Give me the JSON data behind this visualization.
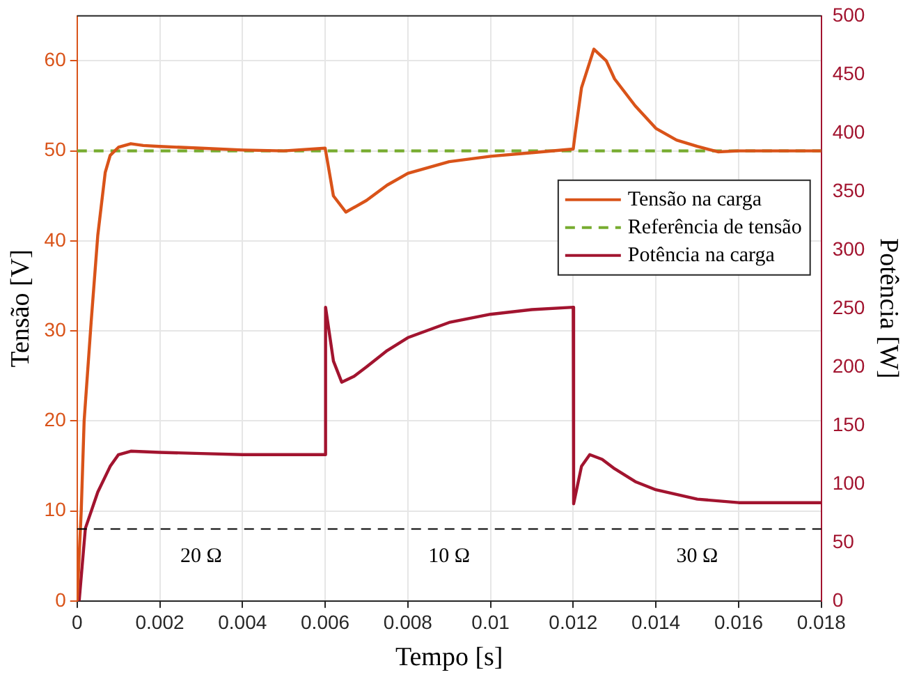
{
  "chart_data": {
    "type": "line",
    "xlabel": "Tempo [s]",
    "ylabel": "Tensão [V]",
    "y2label": "Potência [W]",
    "xlim": [
      0,
      0.018
    ],
    "xticks": [
      0,
      0.002,
      0.004,
      0.006,
      0.008,
      0.01,
      0.012,
      0.014,
      0.016,
      0.018
    ],
    "ylim": [
      0,
      65
    ],
    "yticks": [
      0,
      10,
      20,
      30,
      40,
      50,
      60
    ],
    "y2lim": [
      0,
      500
    ],
    "y2ticks": [
      0,
      50,
      100,
      150,
      200,
      250,
      300,
      350,
      400,
      450,
      500
    ],
    "grid": true,
    "legend": "top right",
    "marker": "none",
    "series": [
      {
        "name": "Tensão na carga",
        "color": "#d95319",
        "axis": "y",
        "x": [
          0,
          0.0001,
          0.00017,
          0.00034,
          0.0005,
          0.00068,
          0.0008,
          0.001,
          0.0013,
          0.0016,
          0.002,
          0.003,
          0.004,
          0.005,
          0.006,
          0.00605,
          0.0062,
          0.0065,
          0.007,
          0.0075,
          0.008,
          0.009,
          0.01,
          0.011,
          0.012,
          0.01205,
          0.0122,
          0.0125,
          0.0128,
          0.013,
          0.0135,
          0.014,
          0.0145,
          0.015,
          0.0155,
          0.016,
          0.017,
          0.018
        ],
        "values": [
          0,
          10,
          20,
          31,
          40.6,
          47.6,
          49.5,
          50.4,
          50.8,
          50.6,
          50.5,
          50.3,
          50.1,
          50,
          50.3,
          49,
          45,
          43.2,
          44.5,
          46.2,
          47.5,
          48.8,
          49.4,
          49.8,
          50.2,
          52,
          57,
          61.3,
          60,
          58,
          55,
          52.5,
          51.2,
          50.5,
          49.9,
          50,
          50,
          50
        ]
      },
      {
        "name": "Referência de tensão",
        "color": "#77ac30",
        "axis": "y",
        "line_style": "dashed",
        "x": [
          0,
          0.018
        ],
        "values": [
          50,
          50
        ]
      },
      {
        "name": "Potência na carga",
        "color": "#a2142f",
        "axis": "y2",
        "x": [
          0,
          5e-05,
          0.0002,
          0.0005,
          0.0008,
          0.001,
          0.0013,
          0.002,
          0.003,
          0.004,
          0.005,
          0.006,
          0.00601,
          0.0062,
          0.0064,
          0.0067,
          0.007,
          0.0075,
          0.008,
          0.009,
          0.01,
          0.011,
          0.012,
          0.01201,
          0.0122,
          0.0124,
          0.0127,
          0.013,
          0.0135,
          0.014,
          0.015,
          0.016,
          0.017,
          0.018
        ],
        "values": [
          0,
          0,
          62,
          93,
          115,
          125,
          128,
          127,
          126,
          125,
          125,
          125,
          251,
          205,
          187,
          192,
          200,
          214,
          225,
          238,
          245,
          249,
          251,
          83,
          115,
          125,
          121,
          113,
          102,
          95,
          87,
          84,
          84,
          84
        ]
      }
    ],
    "ref_lines": [
      {
        "axis": "y",
        "value": 8,
        "color": "#000000",
        "line_style": "dashed"
      }
    ],
    "annotations": [
      "20 Ω",
      "10 Ω",
      "30 Ω"
    ]
  }
}
